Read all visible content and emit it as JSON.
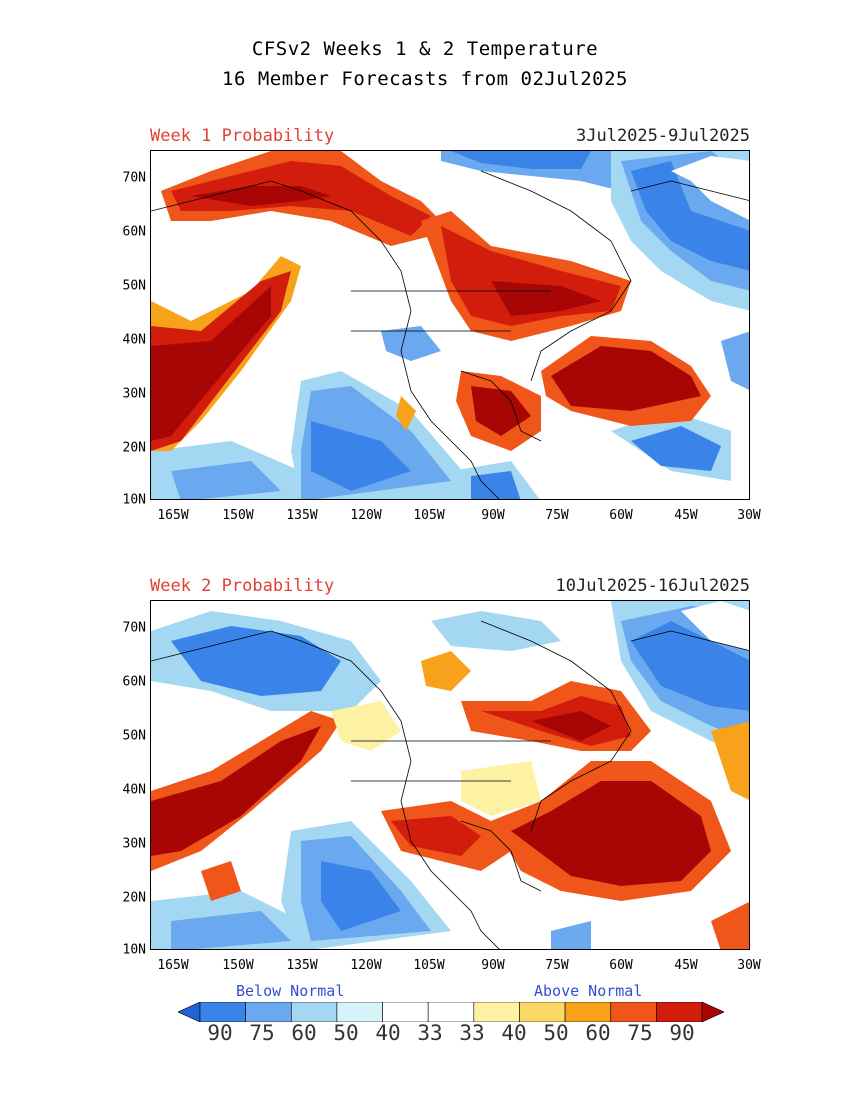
{
  "header": {
    "line1": "CFSv2 Weeks 1 & 2 Temperature",
    "line2": "16 Member Forecasts from 02Jul2025"
  },
  "panels": [
    {
      "label": "Week 1 Probability",
      "dates": "3Jul2025-9Jul2025"
    },
    {
      "label": "Week 2 Probability",
      "dates": "10Jul2025-16Jul2025"
    }
  ],
  "axes": {
    "lat_labels": [
      "70N",
      "60N",
      "50N",
      "40N",
      "30N",
      "20N",
      "10N"
    ],
    "lon_labels": [
      "165W",
      "150W",
      "135W",
      "120W",
      "105W",
      "90W",
      "75W",
      "60W",
      "45W",
      "30W"
    ]
  },
  "legend": {
    "below_label": "Below Normal",
    "above_label": "Above Normal",
    "values": [
      "90",
      "75",
      "60",
      "50",
      "40",
      "33",
      "33",
      "40",
      "50",
      "60",
      "75",
      "90"
    ],
    "colors": [
      "#1f63d8",
      "#3a83e8",
      "#6aa8ef",
      "#a4d7f2",
      "#d6f3fa",
      "#ffffff",
      "#ffffff",
      "#fdf1a4",
      "#fcd866",
      "#f7a21a",
      "#f05519",
      "#d21c0c",
      "#a80605"
    ]
  }
}
